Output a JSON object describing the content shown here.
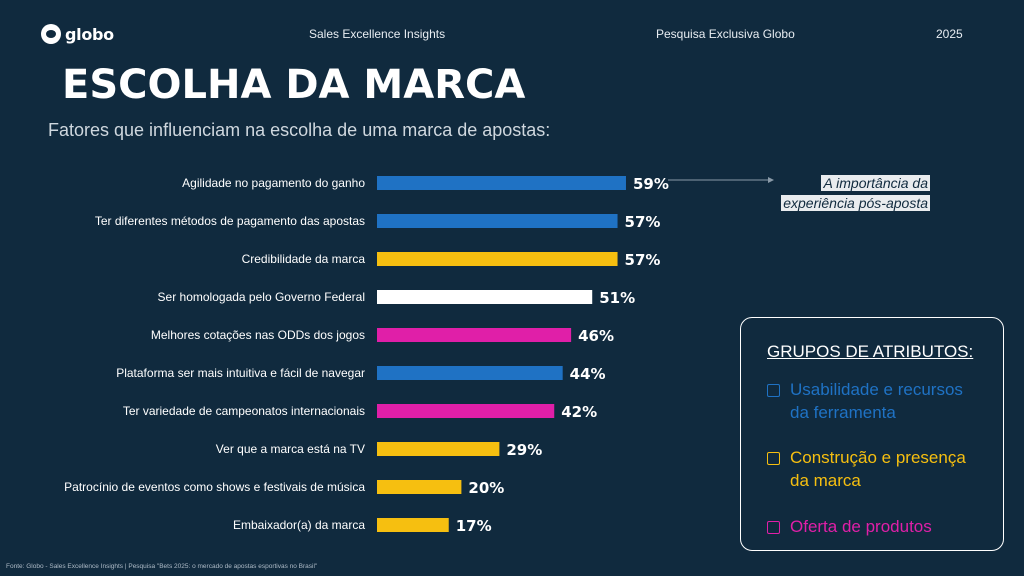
{
  "header": {
    "logo": "globo",
    "center": "Sales Excellence Insights",
    "right": "Pesquisa Exclusiva Globo",
    "year": "2025"
  },
  "title": "ESCOLHA DA MARCA",
  "subtitle": "Fatores que influenciam na escolha de uma marca de apostas:",
  "colors": {
    "background": "#102a3e",
    "usabilidade": "#1f72c4",
    "construcao": "#f6bf10",
    "oferta": "#e01fa8",
    "neutral": "#ffffff"
  },
  "chart_data": {
    "type": "bar",
    "orientation": "horizontal",
    "title": "",
    "xlabel": "",
    "ylabel": "",
    "xlim": [
      0,
      100
    ],
    "categories": [
      "Agilidade no pagamento do ganho",
      "Ter diferentes métodos de pagamento das apostas",
      "Credibilidade da marca",
      "Ser homologada pelo Governo Federal",
      "Melhores cotações nas ODDs dos jogos",
      "Plataforma ser mais intuitiva e fácil de navegar",
      "Ter variedade de campeonatos internacionais",
      "Ver que a marca está na TV",
      "Patrocínio de eventos como shows e festivais de música",
      "Embaixador(a) da marca"
    ],
    "values": [
      59,
      57,
      57,
      51,
      46,
      44,
      42,
      29,
      20,
      17
    ],
    "value_labels": [
      "59%",
      "57%",
      "57%",
      "51%",
      "46%",
      "44%",
      "42%",
      "29%",
      "20%",
      "17%"
    ],
    "bar_colors": [
      "#1f72c4",
      "#1f72c4",
      "#f6bf10",
      "#ffffff",
      "#e01fa8",
      "#1f72c4",
      "#e01fa8",
      "#f6bf10",
      "#f6bf10",
      "#f6bf10"
    ],
    "grid": false
  },
  "annotation": {
    "text_line1": "A importância da",
    "text_line2": "experiência pós-aposta"
  },
  "groups": {
    "title": "GRUPOS DE ATRIBUTOS:",
    "items": [
      {
        "label_line1": "Usabilidade e recursos",
        "label_line2": "da ferramenta",
        "color": "#1f72c4"
      },
      {
        "label_line1": "Construção e presença",
        "label_line2": "da marca",
        "color": "#f6bf10"
      },
      {
        "label_line1": "Oferta de produtos",
        "label_line2": "",
        "color": "#e01fa8"
      }
    ]
  },
  "footer": "Fonte: Globo - Sales Excellence Insights | Pesquisa \"Bets 2025: o mercado de apostas esportivas no Brasil\""
}
